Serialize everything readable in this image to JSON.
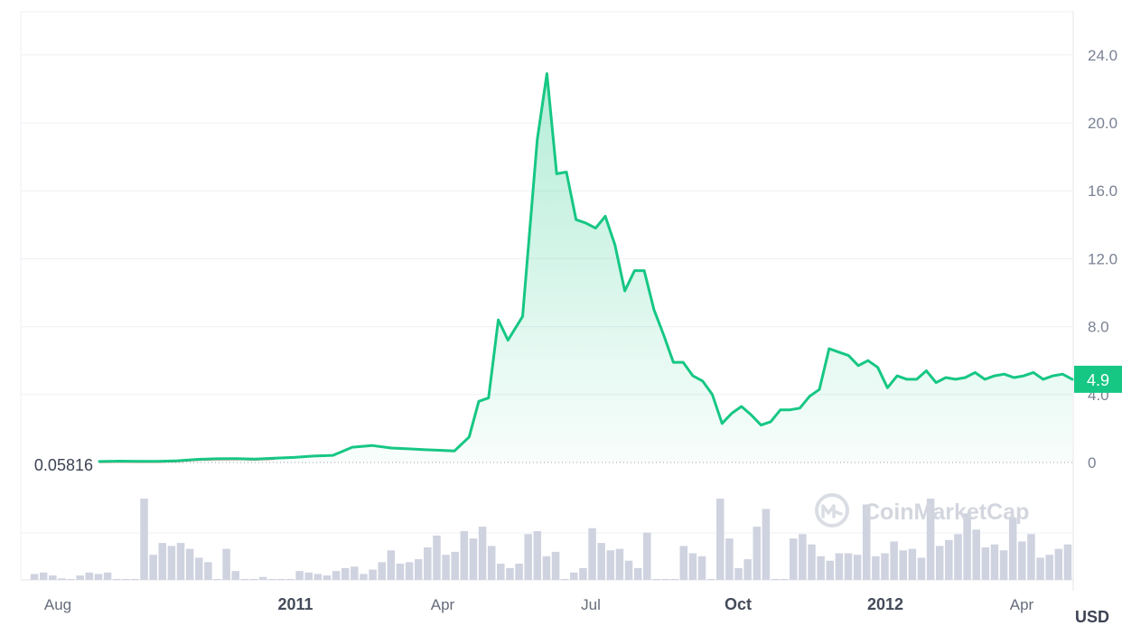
{
  "chart_data": {
    "type": "line",
    "x_ticks": [
      "Aug",
      "2011",
      "Apr",
      "Jul",
      "Oct",
      "2012",
      "Apr"
    ],
    "x_ticks_bold": [
      false,
      true,
      false,
      false,
      true,
      true,
      false
    ],
    "y_ticks": [
      "24.0",
      "20.0",
      "16.0",
      "12.0",
      "8.0",
      "4.0",
      "0"
    ],
    "ylim": [
      0,
      25
    ],
    "baseline_label": "0.05816",
    "baseline_value": 0.05816,
    "current_value_label": "4.9",
    "currency_label": "USD",
    "watermark": "CoinMarketCap",
    "line_color": "#16c784",
    "below_baseline_color": "#ea3943",
    "volume_bar_color": "#cfd3e0",
    "price": {
      "t": [
        0,
        0.02,
        0.04,
        0.06,
        0.08,
        0.1,
        0.12,
        0.14,
        0.16,
        0.18,
        0.2,
        0.22,
        0.24,
        0.26,
        0.28,
        0.3,
        0.32,
        0.335,
        0.35,
        0.365,
        0.38,
        0.39,
        0.4,
        0.41,
        0.42,
        0.435,
        0.45,
        0.46,
        0.47,
        0.48,
        0.49,
        0.5,
        0.51,
        0.52,
        0.53,
        0.54,
        0.55,
        0.56,
        0.57,
        0.58,
        0.59,
        0.6,
        0.61,
        0.62,
        0.63,
        0.64,
        0.65,
        0.66,
        0.67,
        0.68,
        0.69,
        0.7,
        0.71,
        0.72,
        0.73,
        0.74,
        0.75,
        0.76,
        0.77,
        0.78,
        0.79,
        0.8,
        0.81,
        0.82,
        0.83,
        0.84,
        0.85,
        0.86,
        0.87,
        0.88,
        0.89,
        0.9,
        0.91,
        0.92,
        0.93,
        0.94,
        0.95,
        0.96,
        0.97,
        0.98,
        0.99,
        1.0
      ],
      "v": [
        0.06,
        0.08,
        0.07,
        0.07,
        0.1,
        0.18,
        0.22,
        0.23,
        0.2,
        0.25,
        0.3,
        0.38,
        0.42,
        0.9,
        1.0,
        0.85,
        0.8,
        0.75,
        0.72,
        0.68,
        1.5,
        3.6,
        3.8,
        8.4,
        7.2,
        8.6,
        19.0,
        22.9,
        17.0,
        17.1,
        14.3,
        14.1,
        13.8,
        14.5,
        12.8,
        10.1,
        11.3,
        11.3,
        9.0,
        7.5,
        5.9,
        5.9,
        5.1,
        4.8,
        4.0,
        2.3,
        2.9,
        3.3,
        2.8,
        2.2,
        2.4,
        3.1,
        3.1,
        3.2,
        3.9,
        4.3,
        6.7,
        6.5,
        6.3,
        5.7,
        6.0,
        5.6,
        4.4,
        5.1,
        4.9,
        4.9,
        5.4,
        4.7,
        5.0,
        4.9,
        5.0,
        5.3,
        4.9,
        5.1,
        5.2,
        5.0,
        5.1,
        5.3,
        4.9,
        5.1,
        5.2,
        4.9
      ]
    },
    "volume": [
      0.04,
      0.05,
      0.03,
      0.01,
      0.0,
      0.03,
      0.05,
      0.04,
      0.05,
      0.0,
      0.0,
      0.0,
      0.55,
      0.17,
      0.25,
      0.23,
      0.25,
      0.21,
      0.15,
      0.12,
      0.0,
      0.21,
      0.06,
      0.0,
      0.0,
      0.02,
      0.0,
      0.0,
      0.0,
      0.06,
      0.05,
      0.04,
      0.03,
      0.06,
      0.08,
      0.09,
      0.04,
      0.07,
      0.12,
      0.2,
      0.11,
      0.12,
      0.14,
      0.22,
      0.3,
      0.17,
      0.19,
      0.33,
      0.28,
      0.36,
      0.23,
      0.11,
      0.08,
      0.11,
      0.31,
      0.33,
      0.16,
      0.19,
      0.0,
      0.05,
      0.08,
      0.35,
      0.25,
      0.2,
      0.21,
      0.13,
      0.08,
      0.32,
      0.0,
      0.0,
      0.0,
      0.23,
      0.18,
      0.16,
      0.0,
      0.55,
      0.28,
      0.08,
      0.14,
      0.36,
      0.48,
      0.0,
      0.0,
      0.28,
      0.31,
      0.24,
      0.16,
      0.13,
      0.18,
      0.18,
      0.17,
      0.51,
      0.16,
      0.18,
      0.26,
      0.2,
      0.21,
      0.15,
      0.55,
      0.23,
      0.27,
      0.31,
      0.45,
      0.34,
      0.22,
      0.24,
      0.2,
      0.42,
      0.26,
      0.31,
      0.15,
      0.17,
      0.21,
      0.24
    ]
  }
}
